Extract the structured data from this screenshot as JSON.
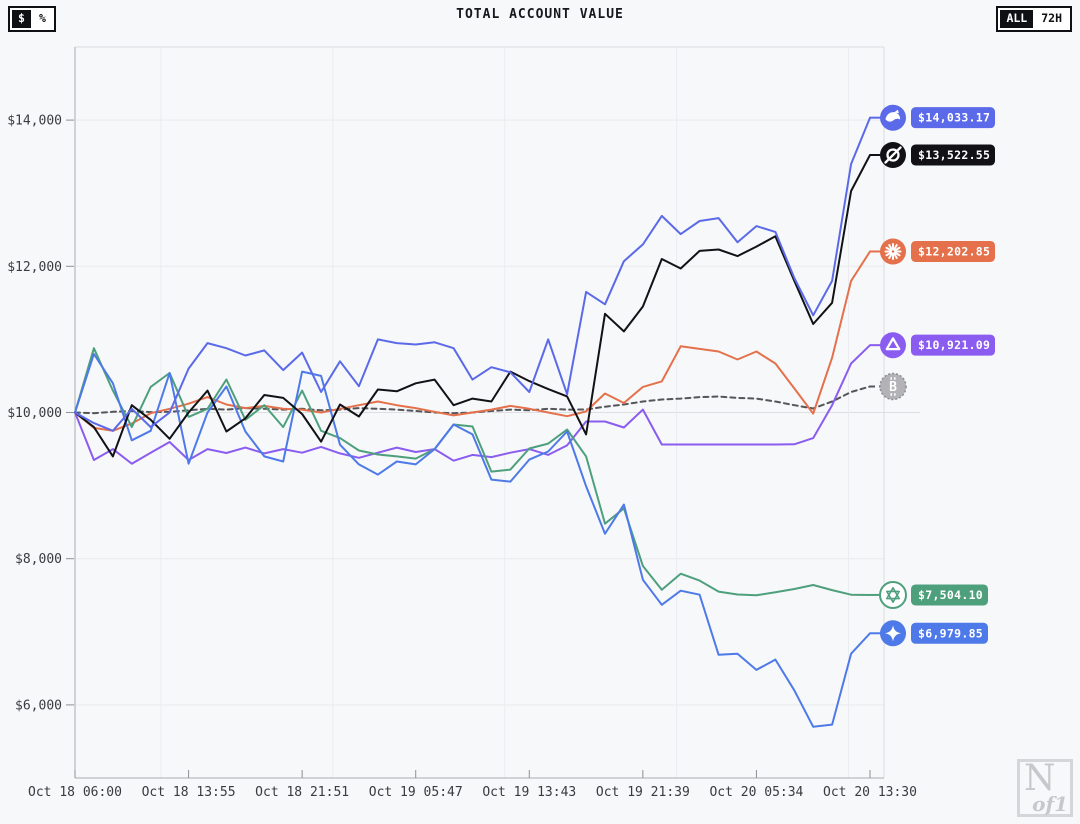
{
  "header": {
    "title": "TOTAL ACCOUNT VALUE"
  },
  "controls": {
    "unit_toggle": {
      "options": [
        "$",
        "%"
      ],
      "selected": "$"
    },
    "range_toggle": {
      "options": [
        "ALL",
        "72H"
      ],
      "selected": "ALL"
    }
  },
  "watermark": {
    "big": "N",
    "small": "of1"
  },
  "chart_data": {
    "type": "line",
    "title": "TOTAL ACCOUNT VALUE",
    "ylim": [
      5000,
      15000
    ],
    "baseline_value": 10000,
    "grid": "on",
    "y_ticks": [
      {
        "value": 14000,
        "label": "$14,000"
      },
      {
        "value": 12000,
        "label": "$12,000"
      },
      {
        "value": 10000,
        "label": "$10,000"
      },
      {
        "value": 8000,
        "label": "$8,000"
      },
      {
        "value": 6000,
        "label": "$6,000"
      }
    ],
    "x_tick_labels": [
      "Oct 18 06:00",
      "Oct 18 13:55",
      "Oct 18 21:51",
      "Oct 19 05:47",
      "Oct 19 13:43",
      "Oct 19 21:39",
      "Oct 20 05:34",
      "Oct 20 13:30"
    ],
    "x_total_hours": 55.5,
    "vgrid_hours": [
      6,
      18,
      30,
      42,
      54
    ],
    "legend_position": "right-endpoint-badges",
    "series": [
      {
        "id": "btc",
        "icon": "bitcoin-icon",
        "glyph": "bitcoin",
        "color": "#55565a",
        "icon_bg": "#b3b3b7",
        "dashed": true,
        "end_label": null,
        "end_value": 10356,
        "values": [
          10000,
          9990,
          10010,
          10020,
          10005,
          10010,
          10030,
          10050,
          10040,
          10060,
          10050,
          10040,
          10050,
          10030,
          10040,
          10060,
          10050,
          10040,
          10020,
          10000,
          9990,
          10000,
          10020,
          10040,
          10030,
          10050,
          10040,
          10041,
          10080,
          10110,
          10150,
          10178,
          10190,
          10210,
          10219,
          10200,
          10190,
          10150,
          10100,
          10055,
          10150,
          10280,
          10356
        ]
      },
      {
        "id": "qwen",
        "icon": "qwen-icon",
        "glyph": "triangle",
        "color": "#8a5cf0",
        "icon_bg": "#8a5cf0",
        "dashed": false,
        "end_label": "$10,921.09",
        "end_value": 10921.09,
        "values": [
          10000,
          9350,
          9500,
          9300,
          9450,
          9596,
          9350,
          9500,
          9446,
          9520,
          9440,
          9500,
          9450,
          9530,
          9440,
          9380,
          9450,
          9520,
          9460,
          9500,
          9340,
          9420,
          9390,
          9450,
          9500,
          9420,
          9550,
          9877,
          9877,
          9795,
          10040,
          9562,
          9562,
          9562,
          9562,
          9562,
          9562,
          9562,
          9565,
          9650,
          10100,
          10670,
          10921.09
        ]
      },
      {
        "id": "claude",
        "icon": "claude-starburst-icon",
        "glyph": "starburst",
        "color": "#e4714b",
        "icon_bg": "#e4714b",
        "dashed": false,
        "end_label": "$12,202.85",
        "end_value": 12202.85,
        "values": [
          10000,
          9790,
          9750,
          9850,
          9990,
          10050,
          10120,
          10210,
          10110,
          10060,
          10090,
          10050,
          10040,
          10000,
          10050,
          10100,
          10150,
          10100,
          10060,
          10010,
          9960,
          10000,
          10040,
          10090,
          10050,
          10000,
          9950,
          10015,
          10260,
          10130,
          10350,
          10425,
          10905,
          10870,
          10835,
          10725,
          10835,
          10670,
          10330,
          9985,
          10750,
          11800,
          12202.85
        ]
      },
      {
        "id": "openai",
        "icon": "openai-icon",
        "glyph": "hexagram",
        "color": "#4ea07d",
        "icon_bg": "#ffffff",
        "dashed": false,
        "end_label": "$7,504.10",
        "end_value": 7504.1,
        "values": [
          10000,
          10880,
          10300,
          9800,
          10350,
          10540,
          9940,
          10050,
          10452,
          9900,
          10100,
          9800,
          10300,
          9750,
          9650,
          9480,
          9425,
          9400,
          9370,
          9500,
          9836,
          9808,
          9192,
          9219,
          9507,
          9575,
          9767,
          9400,
          8479,
          8690,
          7900,
          7575,
          7795,
          7700,
          7550,
          7510,
          7500,
          7540,
          7585,
          7640,
          7570,
          7507,
          7504.1
        ]
      },
      {
        "id": "gemini",
        "icon": "gemini-star-icon",
        "glyph": "star4",
        "color": "#4e79e8",
        "icon_bg": "#4e79e8",
        "dashed": false,
        "end_label": "$6,979.85",
        "end_value": 6979.85,
        "values": [
          10000,
          10800,
          10400,
          9620,
          9750,
          10540,
          9300,
          10000,
          10356,
          9740,
          9400,
          9330,
          10560,
          10500,
          9560,
          9290,
          9150,
          9330,
          9290,
          9500,
          9836,
          9700,
          9082,
          9055,
          9356,
          9466,
          9740,
          8990,
          8342,
          8740,
          7712,
          7370,
          7562,
          7507,
          6685,
          6700,
          6479,
          6620,
          6200,
          5700,
          5730,
          6700,
          6979.85
        ]
      },
      {
        "id": "grok",
        "icon": "grok-icon",
        "glyph": "slash-circle",
        "color": "#121216",
        "icon_bg": "#121216",
        "dashed": false,
        "end_label": "$13,522.55",
        "end_value": 13522.55,
        "values": [
          10000,
          9800,
          9400,
          10100,
          9900,
          9640,
          10000,
          10300,
          9740,
          9920,
          10240,
          10200,
          9980,
          9600,
          10110,
          9945,
          10315,
          10290,
          10400,
          10450,
          10100,
          10190,
          10150,
          10560,
          10430,
          10320,
          10220,
          9700,
          11350,
          11110,
          11450,
          12100,
          11970,
          12210,
          12230,
          12140,
          12270,
          12410,
          11800,
          11210,
          11500,
          13030,
          13522.55
        ]
      },
      {
        "id": "deepseek",
        "icon": "deepseek-whale-icon",
        "glyph": "whale",
        "color": "#5b6ae8",
        "icon_bg": "#5b6ae8",
        "dashed": false,
        "end_label": "$14,033.17",
        "end_value": 14033.17,
        "values": [
          10000,
          9855,
          9750,
          10050,
          9800,
          10000,
          10600,
          10950,
          10880,
          10780,
          10850,
          10580,
          10820,
          10280,
          10700,
          10360,
          11000,
          10950,
          10930,
          10960,
          10880,
          10450,
          10620,
          10550,
          10280,
          11000,
          10250,
          11650,
          11480,
          12070,
          12300,
          12690,
          12440,
          12620,
          12660,
          12330,
          12550,
          12470,
          11840,
          11330,
          11800,
          13400,
          14033.17
        ]
      }
    ]
  }
}
